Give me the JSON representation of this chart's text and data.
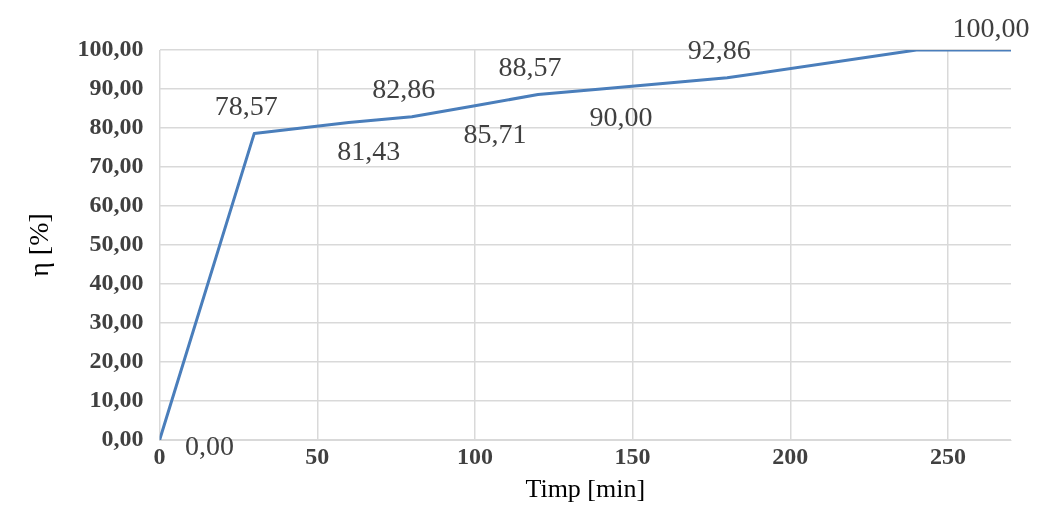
{
  "chart_data": {
    "type": "line",
    "xlabel": "Timp [min]",
    "ylabel": "η [%]",
    "x": [
      0,
      30,
      60,
      80,
      100,
      120,
      140,
      180,
      240,
      270
    ],
    "series": [
      {
        "color": "#4a7ebb",
        "values": [
          0,
          78.57,
          81.43,
          82.86,
          85.71,
          88.57,
          90,
          92.86,
          100,
          100
        ]
      }
    ],
    "value_labels": [
      "0,00",
      "78,57",
      "81,43",
      "82,86",
      "85,71",
      "88,57",
      "90,00",
      "92,86",
      null,
      "100,00"
    ],
    "xlim": [
      0,
      270
    ],
    "xticks": [
      0,
      50,
      100,
      150,
      200,
      250
    ],
    "ylim": [
      0,
      100
    ],
    "yticks": [
      {
        "value": 0,
        "label": "0,00"
      },
      {
        "value": 10,
        "label": "10,00"
      },
      {
        "value": 20,
        "label": "20,00"
      },
      {
        "value": 30,
        "label": "30,00"
      },
      {
        "value": 40,
        "label": "40,00"
      },
      {
        "value": 50,
        "label": "50,00"
      },
      {
        "value": 60,
        "label": "60,00"
      },
      {
        "value": 70,
        "label": "70,00"
      },
      {
        "value": 80,
        "label": "80,00"
      },
      {
        "value": 90,
        "label": "90,00"
      },
      {
        "value": 100,
        "label": "100,00"
      }
    ],
    "grid": true,
    "legend": false,
    "marker": "none",
    "line_style": "solid"
  }
}
